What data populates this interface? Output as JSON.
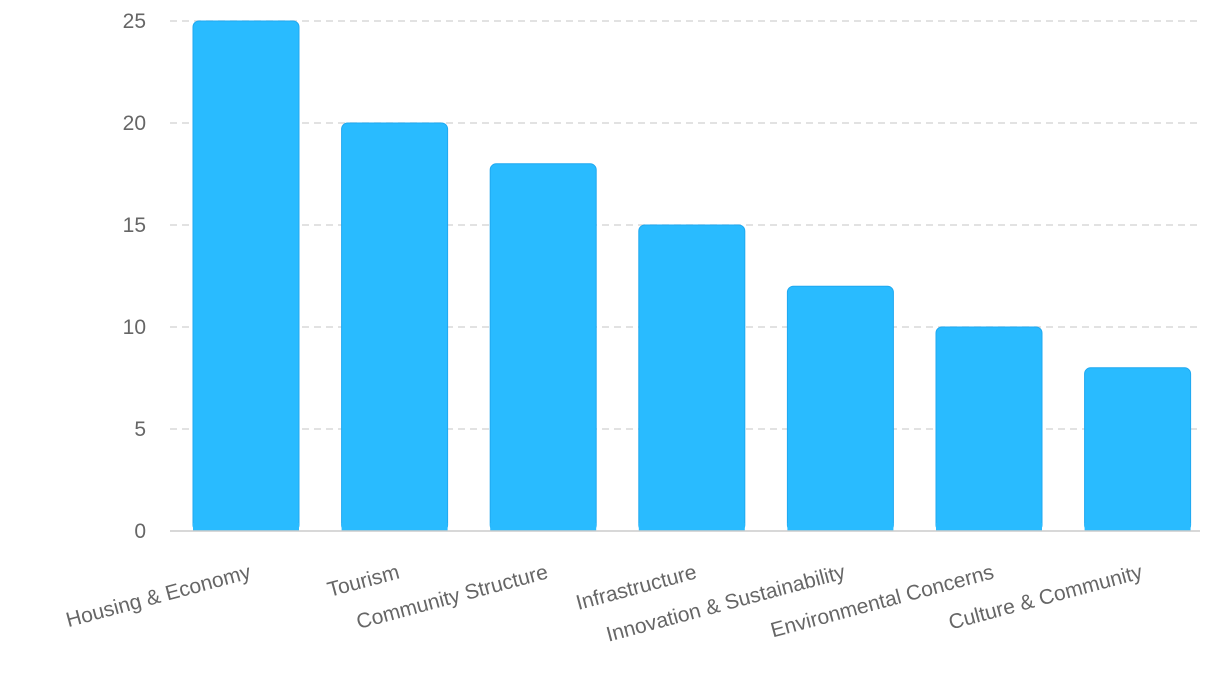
{
  "chart_data": {
    "type": "bar",
    "categories": [
      "Housing & Economy",
      "Tourism",
      "Community Structure",
      "Infrastructure",
      "Innovation & Sustainability",
      "Environmental Concerns",
      "Culture & Community"
    ],
    "values": [
      25,
      20,
      18,
      15,
      12,
      10,
      8
    ],
    "title": "",
    "xlabel": "",
    "ylabel": "",
    "ylim": [
      0,
      25
    ],
    "yticks": [
      0,
      5,
      10,
      15,
      20,
      25
    ],
    "grid": true,
    "legend": "none",
    "colors": {
      "bar": "#29BBFF",
      "bar_border": "#1FA8F0",
      "grid": "#D9D9D9",
      "axis": "#CCCCCC",
      "text": "#666666"
    }
  }
}
